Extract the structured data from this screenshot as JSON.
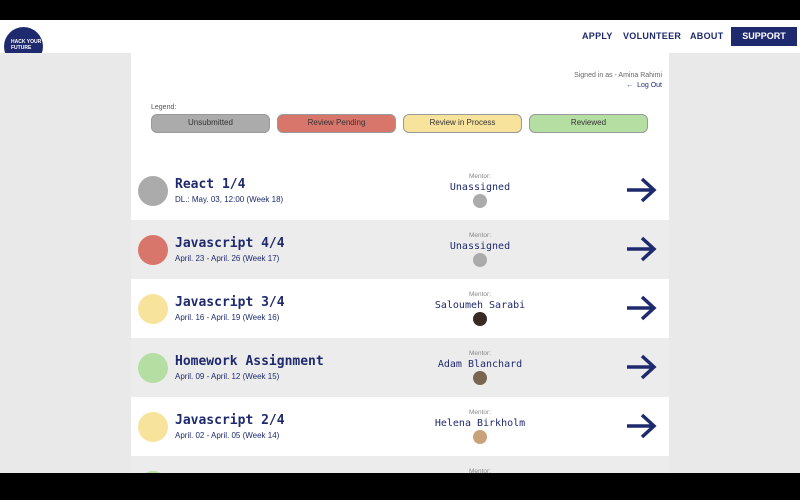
{
  "nav": {
    "logo": "HACK YOUR FUTURE",
    "links": [
      "APPLY",
      "VOLUNTEER",
      "ABOUT"
    ],
    "button": "SUPPORT"
  },
  "header": {
    "signed_in": "Signed in as - Amina Rahimi",
    "logout": "Log Out",
    "legend_label": "Legend:"
  },
  "legend": [
    {
      "label": "Unsubmitted",
      "color": "#ababab"
    },
    {
      "label": "Review Pending",
      "color": "#d9766b"
    },
    {
      "label": "Review in Process",
      "color": "#f7e39b"
    },
    {
      "label": "Reviewed",
      "color": "#b5dea3"
    }
  ],
  "rows": [
    {
      "title": "React 1/4",
      "date": "DL.: May. 03, 12:00 (Week 18)",
      "mentor_label": "Mentor:",
      "mentor": "Unassigned",
      "color": "#ababab",
      "avatar": "#ababab"
    },
    {
      "title": "Javascript 4/4",
      "date": "April. 23 - April. 26 (Week 17)",
      "mentor_label": "Mentor:",
      "mentor": "Unassigned",
      "color": "#d9766b",
      "avatar": "#ababab"
    },
    {
      "title": "Javascript 3/4",
      "date": "April. 16 - April. 19 (Week 16)",
      "mentor_label": "Mentor:",
      "mentor": "Saloumeh Sarabi",
      "color": "#f7e39b",
      "avatar": "#3a2a24"
    },
    {
      "title": "Homework Assignment",
      "date": "April. 09 - April. 12 (Week 15)",
      "mentor_label": "Mentor:",
      "mentor": "Adam Blanchard",
      "color": "#b5dea3",
      "avatar": "#7a6650"
    },
    {
      "title": "Javascript 2/4",
      "date": "April. 02 - April. 05 (Week 14)",
      "mentor_label": "Mentor:",
      "mentor": "Helena Birkholm",
      "color": "#f7e39b",
      "avatar": "#c9a27a"
    },
    {
      "mentor_label": "Mentor:",
      "color": "#b5dea3"
    }
  ]
}
